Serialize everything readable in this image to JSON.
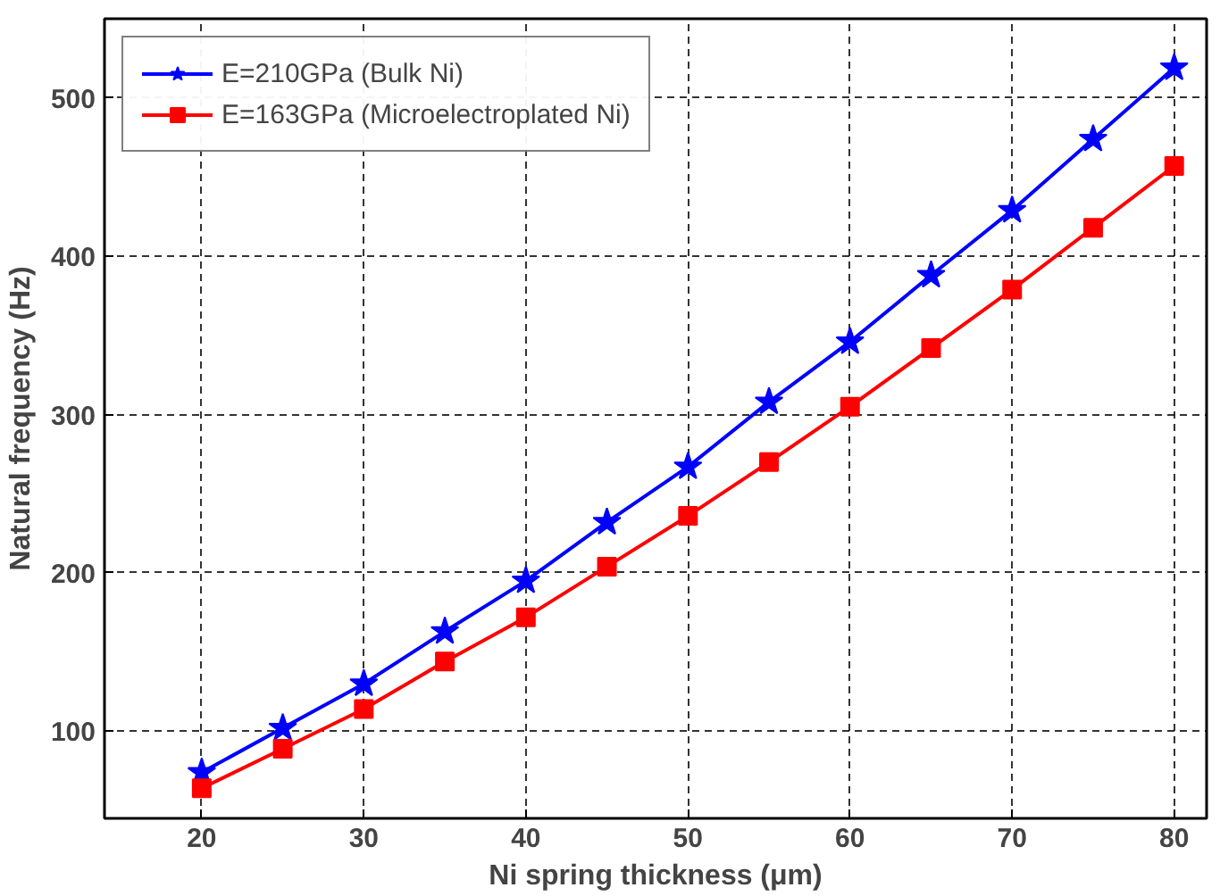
{
  "chart_data": {
    "type": "line",
    "xlabel": "Ni spring thickness (μm)",
    "ylabel": "Natural frequency (Hz)",
    "x": [
      20,
      25,
      30,
      35,
      40,
      45,
      50,
      55,
      60,
      65,
      70,
      75,
      80
    ],
    "series": [
      {
        "name": "E=210GPa (Bulk Ni)",
        "color": "#0000ff",
        "marker": "star",
        "values": [
          74,
          102,
          130,
          163,
          195,
          232,
          267,
          308,
          346,
          388,
          429,
          474,
          519
        ]
      },
      {
        "name": "E=163GPa (Microelectroplated Ni)",
        "color": "#ff0000",
        "marker": "square",
        "values": [
          64,
          89,
          114,
          144,
          172,
          204,
          236,
          270,
          305,
          342,
          379,
          418,
          457
        ]
      }
    ],
    "xlim": [
      14,
      82
    ],
    "ylim": [
      45,
      550
    ],
    "xticks": [
      20,
      30,
      40,
      50,
      60,
      70,
      80
    ],
    "yticks": [
      100,
      200,
      300,
      400,
      500
    ],
    "grid": true,
    "legend": "top left",
    "line_style": "solid"
  }
}
